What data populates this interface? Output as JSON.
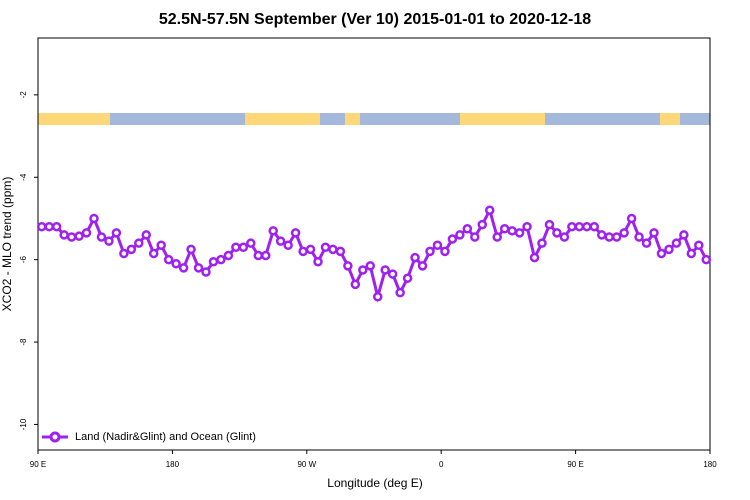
{
  "chart_data": {
    "type": "line",
    "title": "52.5N-57.5N September (Ver 10)   2015-01-01 to 2020-12-18",
    "x_label": "Longitude (deg E)",
    "y_label": "XCO2 - MLO trend (ppm)",
    "xlim": [
      90,
      540
    ],
    "ylim": [
      -10.62,
      -0.62
    ],
    "xticks": [
      {
        "value": 90,
        "label": "90 E"
      },
      180,
      {
        "value": 270,
        "label": "90 W"
      },
      {
        "value": 360,
        "label": "0"
      },
      {
        "value": 450,
        "label": "90 E"
      },
      {
        "value": 540,
        "label": "180"
      }
    ],
    "yticks": [
      -2,
      -4,
      -6,
      -8,
      -10
    ],
    "grid": false,
    "legend_position": "bottom-left",
    "x": [
      92.5,
      97.5,
      102.5,
      107.5,
      112.5,
      117.5,
      122.5,
      127.5,
      132.5,
      137.5,
      142.5,
      147.5,
      152.5,
      157.5,
      162.5,
      167.5,
      172.5,
      177.5,
      182.5,
      187.5,
      192.5,
      197.5,
      202.5,
      207.5,
      212.5,
      217.5,
      222.5,
      227.5,
      232.5,
      237.5,
      242.5,
      247.5,
      252.5,
      257.5,
      262.5,
      267.5,
      272.5,
      277.5,
      282.5,
      287.5,
      292.5,
      297.5,
      302.5,
      307.5,
      312.5,
      317.5,
      322.5,
      327.5,
      332.5,
      337.5,
      342.5,
      347.5,
      352.5,
      357.5,
      362.5,
      367.5,
      372.5,
      377.5,
      382.5,
      387.5,
      392.5,
      397.5,
      402.5,
      407.5,
      412.5,
      417.5,
      422.5,
      427.5,
      432.5,
      437.5,
      442.5,
      447.5,
      452.5,
      457.5,
      462.5,
      467.5,
      472.5,
      477.5,
      482.5,
      487.5,
      492.5,
      497.5,
      502.5,
      507.5,
      512.5,
      517.5,
      522.5,
      527.5,
      532.5,
      537.5
    ],
    "series": [
      {
        "name": "Land (Nadir&Glint) and Ocean (Glint)",
        "color": "#a020f0",
        "values": [
          -5.2,
          -5.2,
          -5.2,
          -5.4,
          -5.45,
          -5.43,
          -5.35,
          -5.0,
          -5.45,
          -5.55,
          -5.35,
          -5.85,
          -5.75,
          -5.6,
          -5.4,
          -5.85,
          -5.65,
          -6.0,
          -6.1,
          -6.2,
          -5.75,
          -6.2,
          -6.3,
          -6.05,
          -6.0,
          -5.9,
          -5.7,
          -5.7,
          -5.6,
          -5.9,
          -5.9,
          -5.3,
          -5.55,
          -5.65,
          -5.35,
          -5.8,
          -5.75,
          -6.05,
          -5.7,
          -5.75,
          -5.8,
          -6.15,
          -6.6,
          -6.25,
          -6.15,
          -6.9,
          -6.25,
          -6.35,
          -6.8,
          -6.45,
          -5.95,
          -6.15,
          -5.8,
          -5.65,
          -5.8,
          -5.5,
          -5.4,
          -5.25,
          -5.45,
          -5.15,
          -4.8,
          -5.45,
          -5.25,
          -5.3,
          -5.35,
          -5.2,
          -5.95,
          -5.6,
          -5.15,
          -5.35,
          -5.45,
          -5.2,
          -5.2,
          -5.2,
          -5.2,
          -5.4,
          -5.45,
          -5.45,
          -5.35,
          -5.0,
          -5.45,
          -5.6,
          -5.35,
          -5.85,
          -5.75,
          -5.6,
          -5.4,
          -5.85,
          -5.65,
          -6.0
        ]
      }
    ]
  }
}
